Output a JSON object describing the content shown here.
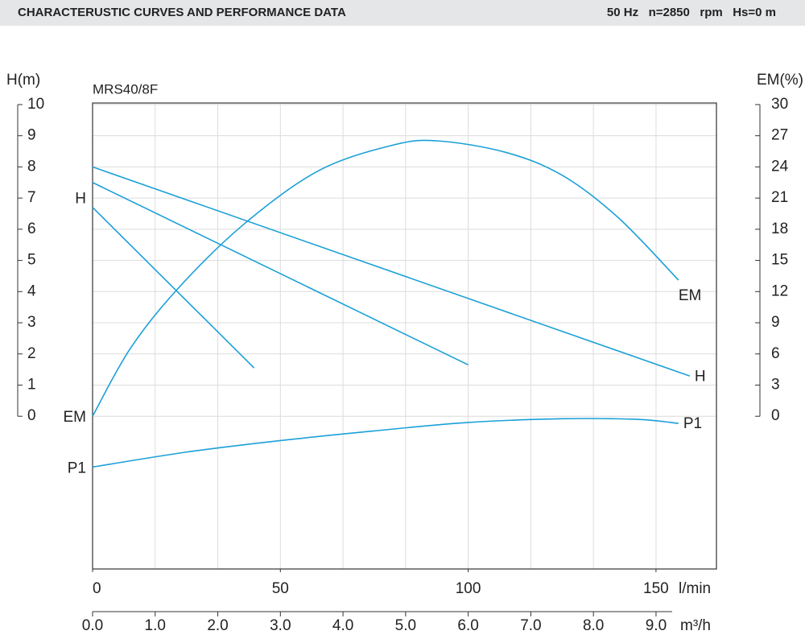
{
  "header": {
    "title": "CHARACTERUSTIC CURVES AND PERFORMANCE DATA",
    "conditions": "50 Hz   n=2850   rpm   Hs=0 m"
  },
  "chart_data": {
    "type": "line",
    "title": "MRS40/8F",
    "y_label": "H(m)",
    "y2_label": "EM(%)",
    "x_label": "l/min",
    "x2_label": "m³/h",
    "xlim": [
      0,
      166.1
    ],
    "xticks": [
      0,
      50,
      100,
      150
    ],
    "x2lim": [
      0,
      9.965
    ],
    "x2ticks": [
      {
        "value": 0,
        "label": "0.0"
      },
      {
        "value": 1,
        "label": "1.0"
      },
      {
        "value": 2,
        "label": "2.0"
      },
      {
        "value": 3,
        "label": "3.0"
      },
      {
        "value": 4,
        "label": "4.0"
      },
      {
        "value": 5,
        "label": "5.0"
      },
      {
        "value": 6,
        "label": "6.0"
      },
      {
        "value": 7,
        "label": "7.0"
      },
      {
        "value": 8,
        "label": "8.0"
      },
      {
        "value": 9,
        "label": "9.0"
      }
    ],
    "ylim": [
      -4.9,
      10.05
    ],
    "yticks": [
      0,
      1,
      2,
      3,
      4,
      5,
      6,
      7,
      8,
      9,
      10
    ],
    "y2lim": [
      -14.7,
      30.15
    ],
    "y2ticks": [
      0,
      3,
      6,
      9,
      12,
      15,
      18,
      21,
      24,
      27,
      30
    ],
    "grid": true,
    "series": [
      {
        "name": "H",
        "color": "#1ca0d8",
        "x": [
          0,
          159
        ],
        "values": [
          8.0,
          1.29
        ]
      },
      {
        "color": "#1ca0d8",
        "x": [
          0,
          100
        ],
        "values": [
          7.5,
          1.65
        ]
      },
      {
        "color": "#1ca0d8",
        "x": [
          0,
          43
        ],
        "values": [
          6.7,
          1.55
        ]
      },
      {
        "name": "EM",
        "color": "#1ca0d8",
        "axis": "y2",
        "x": [
          0,
          10,
          22.5,
          40,
          60,
          80,
          92,
          110,
          125,
          140,
          156
        ],
        "values": [
          0,
          6.5,
          12.2,
          18.4,
          23.6,
          26.1,
          26.5,
          25.4,
          23.2,
          19.1,
          13.1
        ]
      },
      {
        "name": "P1",
        "color": "#1ca0d8",
        "x": [
          0,
          25,
          50,
          75,
          100,
          125,
          145,
          156
        ],
        "values": [
          -1.63,
          -1.15,
          -0.78,
          -0.47,
          -0.2,
          -0.08,
          -0.1,
          -0.23
        ]
      }
    ]
  }
}
